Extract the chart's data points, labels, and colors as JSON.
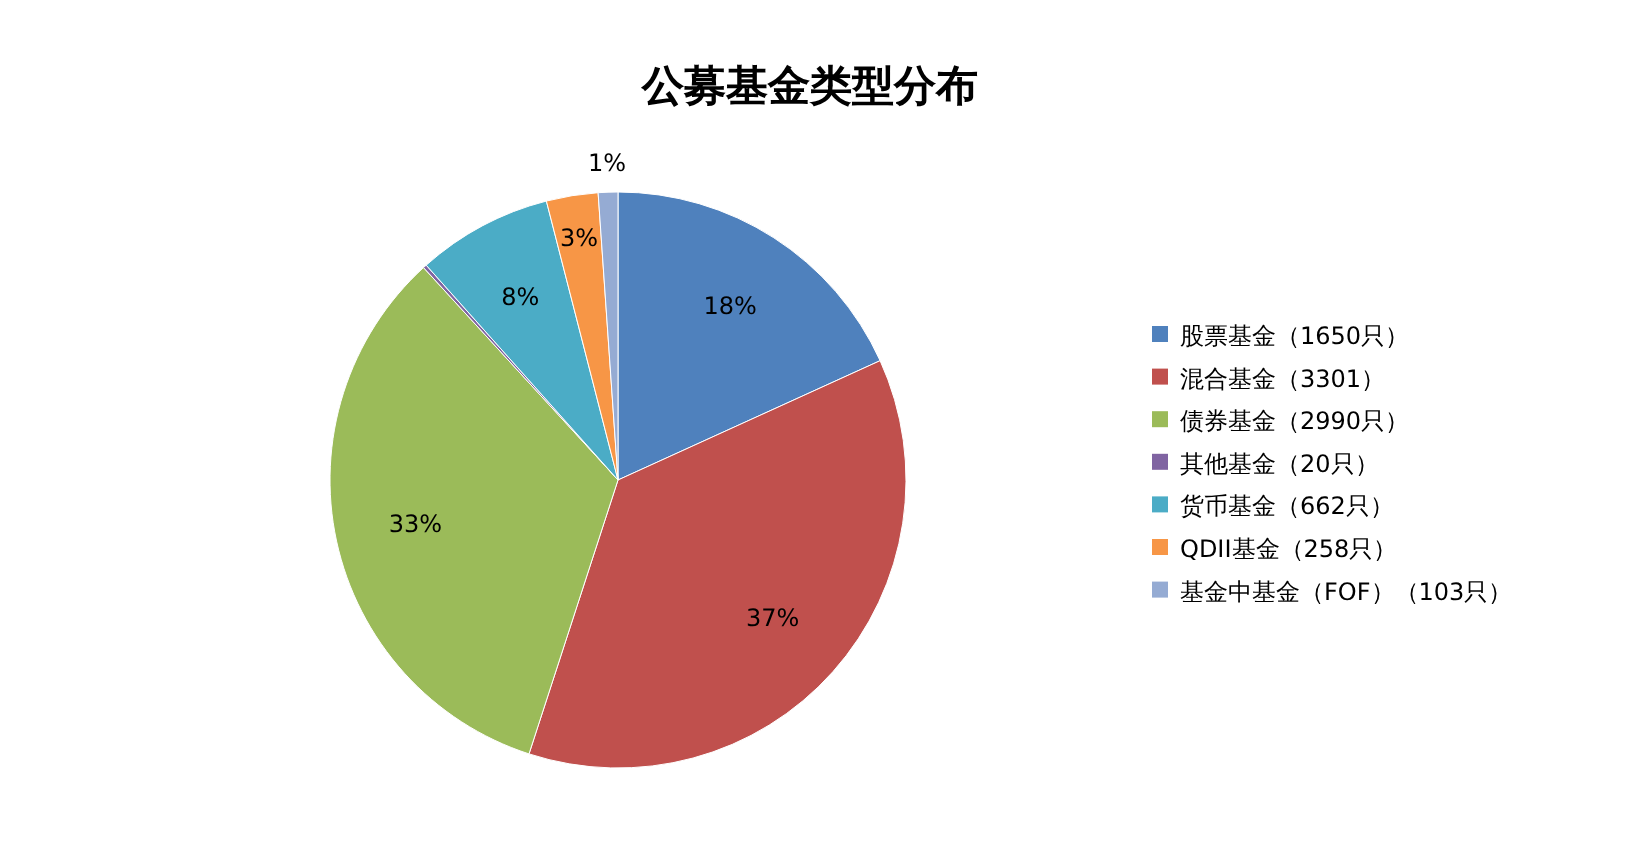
{
  "chart_data": {
    "type": "pie",
    "title": "公募基金类型分布",
    "categories": [
      "股票基金（1650只）",
      "混合基金（3301）",
      "债券基金（2990只）",
      "其他基金（20只）",
      "货币基金（662只）",
      "QDII基金（258只）",
      "基金中基金（FOF）（103只）"
    ],
    "values": [
      18.2,
      36.8,
      33.2,
      0.2,
      7.6,
      2.9,
      1.1
    ],
    "value_labels": [
      "18%",
      "37%",
      "33%",
      null,
      "8%",
      "3%",
      "1%"
    ],
    "colors": [
      "#4f81bd",
      "#c0504d",
      "#9bbb59",
      "#8064a2",
      "#4bacc6",
      "#f79646",
      "#95abd3"
    ],
    "legend": "right"
  }
}
